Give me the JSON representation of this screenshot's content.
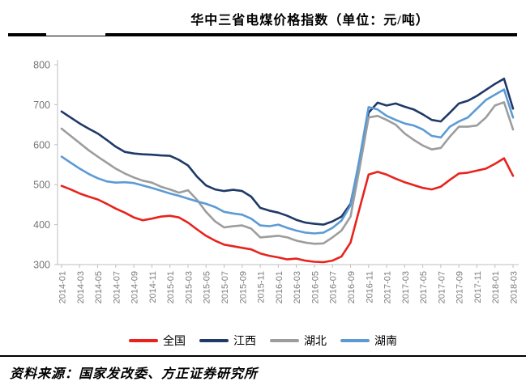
{
  "title": "华中三省电煤价格指数（单位：元/吨）",
  "source_note": "资料来源：国家发改委、方正证券研究所",
  "colors": {
    "national": "#e8231d",
    "jiangxi": "#1f3968",
    "hubei": "#9d9d9d",
    "hunan": "#5b9bd5",
    "axis_line": "#bfbfbf",
    "tick_text": "#757575"
  },
  "chart_data": {
    "type": "line",
    "title": "华中三省电煤价格指数（单位：元/吨）",
    "unit": "元/吨",
    "xlabel": "",
    "ylabel": "",
    "ylim": [
      300,
      800
    ],
    "yticks": [
      300,
      400,
      500,
      600,
      700,
      800
    ],
    "grid": false,
    "legend_position": "bottom",
    "x": [
      "2014-01",
      "2014-02",
      "2014-03",
      "2014-04",
      "2014-05",
      "2014-06",
      "2014-07",
      "2014-08",
      "2014-09",
      "2014-10",
      "2014-11",
      "2014-12",
      "2015-01",
      "2015-02",
      "2015-03",
      "2015-04",
      "2015-05",
      "2015-06",
      "2015-07",
      "2015-08",
      "2015-09",
      "2015-10",
      "2015-11",
      "2015-12",
      "2016-01",
      "2016-02",
      "2016-03",
      "2016-04",
      "2016-05",
      "2016-06",
      "2016-07",
      "2016-08",
      "2016-09",
      "2016-10",
      "2016-11",
      "2016-12",
      "2017-01",
      "2017-02",
      "2017-03",
      "2017-04",
      "2017-05",
      "2017-06",
      "2017-07",
      "2017-08",
      "2017-09",
      "2017-10",
      "2017-11",
      "2017-12",
      "2018-01",
      "2018-02",
      "2018-03"
    ],
    "x_tick_every": 2,
    "series": [
      {
        "name": "全国",
        "color": "#e8231d",
        "values": [
          497,
          488,
          478,
          470,
          463,
          452,
          440,
          430,
          418,
          411,
          415,
          420,
          422,
          418,
          405,
          388,
          372,
          360,
          350,
          346,
          342,
          338,
          328,
          322,
          318,
          313,
          315,
          310,
          307,
          306,
          310,
          320,
          355,
          440,
          525,
          532,
          525,
          515,
          506,
          499,
          492,
          488,
          495,
          512,
          528,
          530,
          535,
          540,
          552,
          566,
          522
        ]
      },
      {
        "name": "江西",
        "color": "#1f3968",
        "values": [
          683,
          668,
          653,
          640,
          628,
          612,
          595,
          582,
          578,
          576,
          575,
          573,
          572,
          562,
          548,
          520,
          498,
          488,
          484,
          487,
          484,
          470,
          442,
          435,
          430,
          422,
          412,
          405,
          402,
          400,
          408,
          420,
          452,
          560,
          680,
          705,
          698,
          703,
          695,
          688,
          676,
          662,
          658,
          680,
          703,
          710,
          722,
          737,
          752,
          765,
          690
        ]
      },
      {
        "name": "湖北",
        "color": "#9d9d9d",
        "values": [
          640,
          622,
          604,
          586,
          570,
          555,
          540,
          528,
          518,
          510,
          505,
          495,
          488,
          480,
          486,
          462,
          432,
          408,
          393,
          396,
          398,
          390,
          368,
          370,
          372,
          368,
          360,
          355,
          352,
          353,
          368,
          385,
          420,
          540,
          668,
          672,
          662,
          650,
          628,
          612,
          598,
          588,
          592,
          620,
          645,
          645,
          648,
          668,
          698,
          706,
          638
        ]
      },
      {
        "name": "湖南",
        "color": "#5b9bd5",
        "values": [
          570,
          555,
          540,
          527,
          516,
          508,
          505,
          506,
          504,
          498,
          492,
          485,
          478,
          472,
          465,
          458,
          452,
          444,
          432,
          428,
          425,
          415,
          398,
          396,
          400,
          392,
          385,
          380,
          378,
          380,
          392,
          410,
          448,
          565,
          694,
          688,
          672,
          662,
          653,
          648,
          638,
          622,
          618,
          645,
          658,
          668,
          690,
          712,
          725,
          738,
          668
        ]
      }
    ]
  }
}
